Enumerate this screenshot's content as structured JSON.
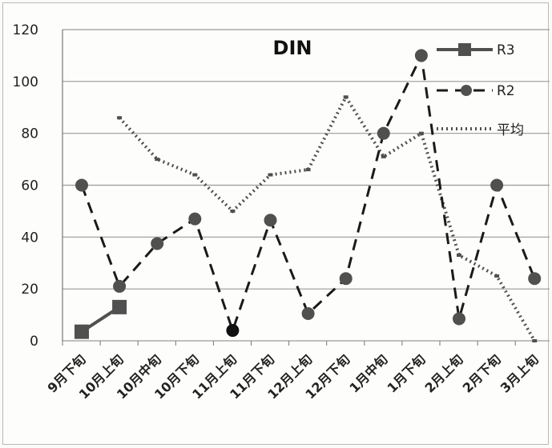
{
  "chart_data": {
    "type": "line",
    "title": "DIN",
    "xlabel": "",
    "ylabel": "",
    "ylim": [
      0,
      120
    ],
    "yticks": [
      0,
      20,
      40,
      60,
      80,
      100,
      120
    ],
    "grid": true,
    "legend_position": "top-right",
    "categories": [
      "9月下旬",
      "10月上旬",
      "10月中旬",
      "10月下旬",
      "11月上旬",
      "11月下旬",
      "12月上旬",
      "12月下旬",
      "1月中旬",
      "1月下旬",
      "2月上旬",
      "2月下旬",
      "3月上旬"
    ],
    "series": [
      {
        "name": "R3",
        "color": "#505050",
        "values": [
          3.5,
          13,
          null,
          null,
          null,
          null,
          null,
          null,
          null,
          null,
          null,
          null,
          null
        ]
      },
      {
        "name": "R2",
        "color": "#505050",
        "values": [
          60,
          21,
          37.5,
          47,
          4,
          46.5,
          10.5,
          24,
          80,
          110,
          8.5,
          60,
          24
        ]
      },
      {
        "name": "平均",
        "color": "#505050",
        "values": [
          null,
          86,
          70,
          64,
          50,
          64,
          66,
          94,
          71,
          80,
          33,
          25,
          0
        ]
      }
    ],
    "extra_markers": [
      {
        "series": "R2",
        "index": 4,
        "color": "#111111"
      }
    ]
  }
}
